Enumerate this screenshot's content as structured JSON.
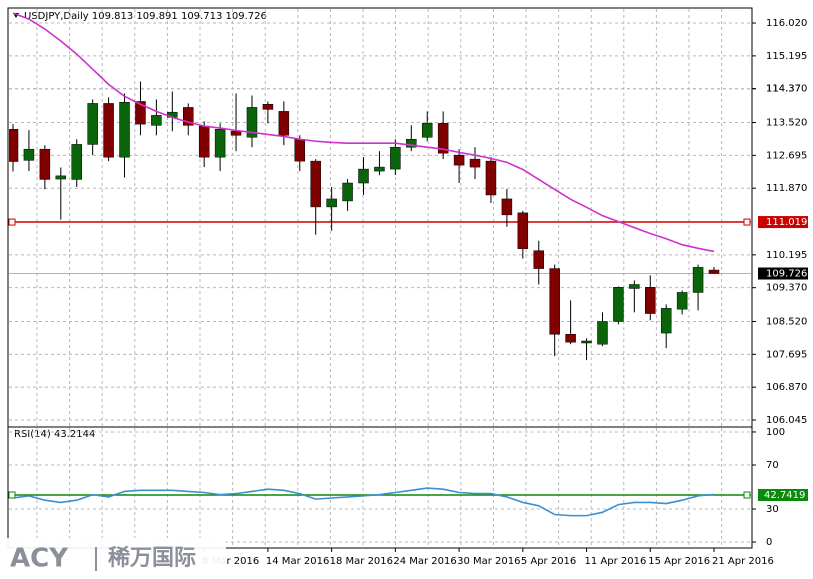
{
  "chart_data": {
    "type": "candlestick",
    "title": "USDJPY,Daily  109.813 109.891 109.713 109.726",
    "categories": [
      null,
      null,
      null,
      null,
      null,
      null,
      null,
      null,
      null,
      null,
      null,
      null,
      "8 Mar 2016",
      null,
      null,
      null,
      "14 Mar 2016",
      null,
      null,
      null,
      "18 Mar 2016",
      null,
      null,
      null,
      "24 Mar 2016",
      null,
      null,
      null,
      "30 Mar 2016",
      null,
      null,
      null,
      "5 Apr 2016",
      null,
      null,
      null,
      "11 Apr 2016",
      null,
      null,
      null,
      "15 Apr 2016",
      null,
      null,
      null,
      "21 Apr 2016"
    ],
    "open": [
      113.35,
      112.57,
      112.85,
      112.1,
      112.09,
      112.97,
      114.0,
      112.65,
      114.05,
      113.45,
      113.65,
      113.9,
      113.43,
      112.65,
      113.3,
      113.15,
      113.98,
      113.8,
      113.1,
      112.55,
      111.4,
      111.55,
      112.0,
      112.3,
      112.35,
      112.9,
      113.15,
      113.5,
      112.7,
      112.6,
      112.55,
      111.6,
      111.25,
      110.3,
      109.85,
      108.2,
      107.98,
      107.95,
      108.52,
      109.35,
      109.38,
      108.23,
      108.83,
      109.25,
      109.813
    ],
    "high": [
      113.48,
      113.33,
      112.95,
      112.39,
      113.1,
      114.1,
      114.15,
      114.25,
      114.55,
      114.1,
      114.3,
      114.0,
      113.55,
      113.5,
      114.25,
      114.2,
      114.05,
      114.05,
      113.2,
      112.6,
      111.9,
      112.1,
      112.65,
      112.8,
      113.1,
      113.45,
      113.8,
      113.8,
      112.85,
      112.9,
      112.65,
      111.85,
      111.3,
      110.55,
      109.95,
      109.05,
      108.1,
      108.75,
      109.4,
      109.55,
      109.68,
      108.95,
      109.3,
      109.95,
      109.891
    ],
    "low": [
      112.29,
      112.3,
      111.84,
      111.08,
      111.9,
      112.7,
      112.55,
      112.14,
      113.2,
      113.2,
      113.3,
      113.2,
      112.4,
      112.3,
      112.8,
      112.9,
      113.5,
      112.95,
      112.3,
      110.7,
      110.8,
      111.3,
      111.7,
      112.2,
      112.2,
      112.8,
      113.05,
      112.6,
      112.0,
      112.1,
      111.5,
      110.9,
      110.1,
      109.45,
      107.65,
      107.95,
      107.55,
      107.9,
      108.45,
      108.75,
      108.55,
      107.85,
      108.7,
      108.8,
      109.713
    ],
    "close": [
      112.54,
      112.85,
      112.09,
      112.18,
      112.97,
      114.0,
      112.65,
      114.03,
      113.48,
      113.7,
      113.78,
      113.45,
      112.65,
      113.35,
      113.2,
      113.9,
      113.85,
      113.2,
      112.55,
      111.4,
      111.6,
      112.0,
      112.35,
      112.4,
      112.9,
      113.1,
      113.5,
      112.75,
      112.45,
      112.4,
      111.7,
      111.2,
      110.35,
      109.85,
      108.2,
      108.0,
      108.03,
      108.52,
      109.38,
      109.45,
      108.72,
      108.85,
      109.25,
      109.88,
      109.726
    ],
    "up_color": "#0a640a",
    "down_color": "#800000",
    "moving_average": {
      "color": "#cc33cc",
      "values": [
        116.27,
        116.12,
        115.87,
        115.57,
        115.24,
        114.86,
        114.48,
        114.18,
        113.98,
        113.8,
        113.65,
        113.53,
        113.43,
        113.38,
        113.32,
        113.27,
        113.22,
        113.17,
        113.1,
        113.05,
        113.02,
        113.0,
        113.0,
        113.0,
        113.0,
        112.95,
        112.9,
        112.85,
        112.77,
        112.7,
        112.62,
        112.52,
        112.34,
        112.09,
        111.84,
        111.59,
        111.39,
        111.18,
        111.03,
        110.88,
        110.73,
        110.6,
        110.45,
        110.36,
        110.28
      ]
    },
    "ylim": [
      105.894,
      116.373
    ],
    "yticks": [
      {
        "value": 116.02,
        "label": "116.020"
      },
      115.195,
      114.37,
      {
        "value": 114.37,
        "label": "114.370"
      },
      {
        "value": 113.52,
        "label": "113.520"
      },
      112.695,
      {
        "value": 111.87,
        "label": "111.870"
      },
      110.195,
      {
        "value": 109.37,
        "label": "109.370"
      },
      {
        "value": 108.52,
        "label": "108.520"
      },
      107.695,
      {
        "value": 106.87,
        "label": "106.870"
      },
      106.045
    ],
    "level": {
      "value": 111.019,
      "color": "#cc0000"
    },
    "last_price": 109.726,
    "rsi": {
      "label": "RSI(14) 43.2144",
      "color": "#3a8fd0",
      "values": [
        40,
        42,
        38,
        36,
        38,
        43,
        41,
        46,
        47,
        47,
        47,
        46,
        45,
        43,
        44,
        46,
        48,
        47,
        44,
        39,
        40,
        41,
        42,
        43,
        45,
        47,
        49,
        48,
        45,
        44,
        44,
        41,
        36,
        33,
        25,
        24,
        24,
        27,
        34,
        36,
        36,
        35,
        38,
        42,
        43.2144
      ],
      "ylim": [
        -4.5,
        103.6
      ],
      "yticks": [
        0,
        30,
        70,
        100
      ],
      "level": {
        "value": 42.7419,
        "color": "#0a8a0a"
      }
    },
    "watermark": {
      "brand": "ACY",
      "name": "稀万国际"
    }
  }
}
